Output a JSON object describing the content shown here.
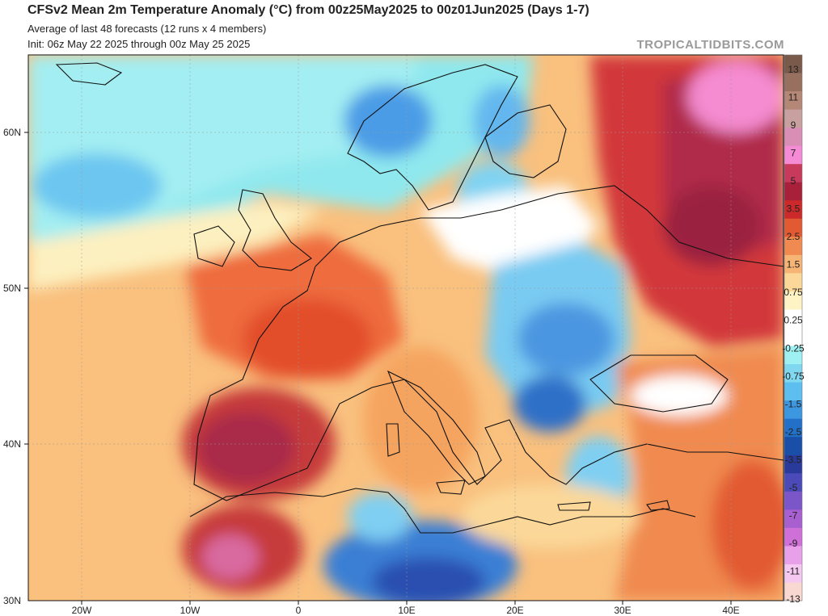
{
  "header": {
    "title": "CFSv2 Mean 2m Temperature Anomaly (°C) from 00z25May2025 to 00z01Jun2025 (Days 1-7)",
    "subtitle_line1": "Average of last 48 forecasts (12 runs x 4 members)",
    "subtitle_line2": "Init: 06z May 22 2025 through 00z May 25 2025",
    "credit": "TROPICALTIDBITS.COM"
  },
  "map": {
    "region": "Europe, North Africa and Middle East",
    "lat_labels": [
      "60N",
      "50N",
      "40N",
      "30N"
    ],
    "lon_labels": [
      "20W",
      "10W",
      "0",
      "10E",
      "20E",
      "30E",
      "40E"
    ]
  },
  "colorbar": {
    "labels": [
      "13",
      "11",
      "9",
      "7",
      "5",
      "3.5",
      "2.5",
      "1.5",
      "0.75",
      "0.25",
      "-0.25",
      "-0.75",
      "-1.5",
      "-2.5",
      "-3.5",
      "-5",
      "-7",
      "-9",
      "-11",
      "-13"
    ],
    "colors": [
      "#7a5a4a",
      "#98705f",
      "#b58777",
      "#c9a0a0",
      "#d98fb5",
      "#f58bd5",
      "#c73a5c",
      "#a8203a",
      "#cc2a2a",
      "#e25a32",
      "#f08a50",
      "#f7b575",
      "#fbd899",
      "#fdf3c4",
      "#ffffff",
      "#ffffff",
      "#9ff0f2",
      "#7fd8f0",
      "#5cbff0",
      "#3d96e0",
      "#2370c8",
      "#1a4fa8",
      "#2a3a9a",
      "#4a4ab8",
      "#7a56c8",
      "#a860d0",
      "#cf70d8",
      "#e8a0e8",
      "#f4c8f0",
      "#f8d8d0"
    ]
  },
  "colors": {
    "ocean_default": "#f7b06a",
    "land_border": "#111111"
  }
}
